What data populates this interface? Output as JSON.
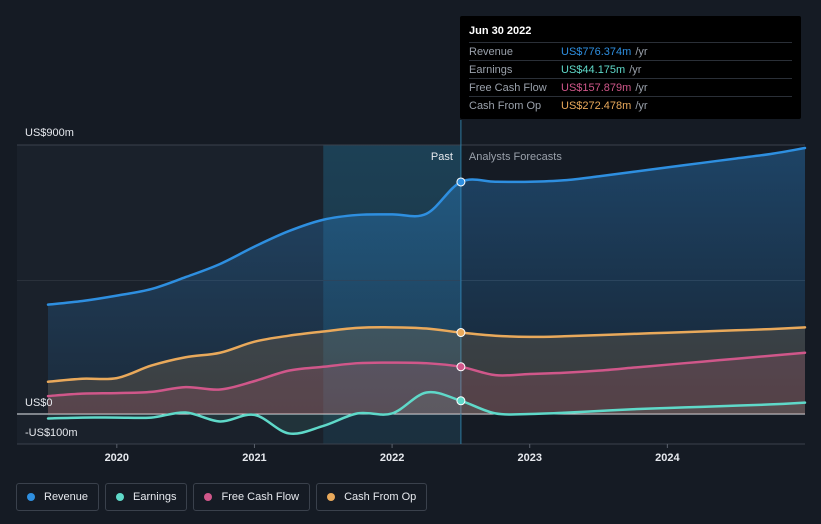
{
  "tooltip": {
    "date": "Jun 30 2022",
    "rows": [
      {
        "label": "Revenue",
        "value": "US$776.374m",
        "unit": "/yr",
        "color": "#2e8fe0"
      },
      {
        "label": "Earnings",
        "value": "US$44.175m",
        "unit": "/yr",
        "color": "#5fd9c9"
      },
      {
        "label": "Free Cash Flow",
        "value": "US$157.879m",
        "unit": "/yr",
        "color": "#d0578a"
      },
      {
        "label": "Cash From Op",
        "value": "US$272.478m",
        "unit": "/yr",
        "color": "#e9a95b"
      }
    ]
  },
  "legend": [
    {
      "label": "Revenue",
      "color": "#2e8fe0"
    },
    {
      "label": "Earnings",
      "color": "#5fd9c9"
    },
    {
      "label": "Free Cash Flow",
      "color": "#d0578a"
    },
    {
      "label": "Cash From Op",
      "color": "#e9a95b"
    }
  ],
  "chart_data": {
    "type": "area",
    "y_axis_labels": {
      "top": "US$900m",
      "zero": "US$0",
      "bottom": "-US$100m"
    },
    "ylim": [
      -100,
      900
    ],
    "xlim": [
      2019.5,
      2025.0
    ],
    "x_ticks": [
      2020,
      2021,
      2022,
      2023,
      2024
    ],
    "x_tick_labels": [
      "2020",
      "2021",
      "2022",
      "2023",
      "2024"
    ],
    "past_label": "Past",
    "forecast_label": "Analysts Forecasts",
    "past_end": 2022.5,
    "highlight_start": 2021.5,
    "series": [
      {
        "name": "Revenue",
        "color": "#2e8fe0",
        "points": [
          [
            2019.5,
            366
          ],
          [
            2019.75,
            378
          ],
          [
            2020.0,
            396
          ],
          [
            2020.25,
            418
          ],
          [
            2020.5,
            458
          ],
          [
            2020.75,
            502
          ],
          [
            2021.0,
            560
          ],
          [
            2021.25,
            612
          ],
          [
            2021.5,
            650
          ],
          [
            2021.75,
            666
          ],
          [
            2022.0,
            668
          ],
          [
            2022.25,
            670
          ],
          [
            2022.5,
            776.374
          ],
          [
            2022.75,
            777
          ],
          [
            2023.0,
            777
          ],
          [
            2023.25,
            782
          ],
          [
            2023.5,
            795
          ],
          [
            2023.75,
            810
          ],
          [
            2024.0,
            825
          ],
          [
            2024.25,
            840
          ],
          [
            2024.5,
            855
          ],
          [
            2024.75,
            870
          ],
          [
            2025.0,
            890
          ]
        ]
      },
      {
        "name": "Earnings",
        "color": "#5fd9c9",
        "points": [
          [
            2019.5,
            -15
          ],
          [
            2019.75,
            -12
          ],
          [
            2020.0,
            -12
          ],
          [
            2020.25,
            -12
          ],
          [
            2020.5,
            5
          ],
          [
            2020.75,
            -25
          ],
          [
            2021.0,
            -3
          ],
          [
            2021.25,
            -65
          ],
          [
            2021.5,
            -40
          ],
          [
            2021.75,
            2
          ],
          [
            2022.0,
            2
          ],
          [
            2022.25,
            72
          ],
          [
            2022.5,
            44.175
          ],
          [
            2022.75,
            2
          ],
          [
            2023.0,
            0
          ],
          [
            2023.25,
            4
          ],
          [
            2023.5,
            10
          ],
          [
            2023.75,
            16
          ],
          [
            2024.0,
            20
          ],
          [
            2024.25,
            24
          ],
          [
            2024.5,
            28
          ],
          [
            2024.75,
            32
          ],
          [
            2025.0,
            38
          ]
        ]
      },
      {
        "name": "Free Cash Flow",
        "color": "#d0578a",
        "points": [
          [
            2019.5,
            60
          ],
          [
            2019.75,
            68
          ],
          [
            2020.0,
            70
          ],
          [
            2020.25,
            74
          ],
          [
            2020.5,
            90
          ],
          [
            2020.75,
            82
          ],
          [
            2021.0,
            110
          ],
          [
            2021.25,
            145
          ],
          [
            2021.5,
            158
          ],
          [
            2021.75,
            170
          ],
          [
            2022.0,
            172
          ],
          [
            2022.25,
            170
          ],
          [
            2022.5,
            157.879
          ],
          [
            2022.75,
            130
          ],
          [
            2023.0,
            134
          ],
          [
            2023.25,
            138
          ],
          [
            2023.5,
            145
          ],
          [
            2023.75,
            155
          ],
          [
            2024.0,
            165
          ],
          [
            2024.25,
            175
          ],
          [
            2024.5,
            185
          ],
          [
            2024.75,
            195
          ],
          [
            2025.0,
            205
          ]
        ]
      },
      {
        "name": "Cash From Op",
        "color": "#e9a95b",
        "points": [
          [
            2019.5,
            108
          ],
          [
            2019.75,
            118
          ],
          [
            2020.0,
            120
          ],
          [
            2020.25,
            162
          ],
          [
            2020.5,
            190
          ],
          [
            2020.75,
            205
          ],
          [
            2021.0,
            242
          ],
          [
            2021.25,
            262
          ],
          [
            2021.5,
            276
          ],
          [
            2021.75,
            288
          ],
          [
            2022.0,
            290
          ],
          [
            2022.25,
            286
          ],
          [
            2022.5,
            272.478
          ],
          [
            2022.75,
            262
          ],
          [
            2023.0,
            258
          ],
          [
            2023.25,
            260
          ],
          [
            2023.5,
            264
          ],
          [
            2023.75,
            268
          ],
          [
            2024.0,
            272
          ],
          [
            2024.25,
            276
          ],
          [
            2024.5,
            280
          ],
          [
            2024.75,
            284
          ],
          [
            2025.0,
            290
          ]
        ]
      }
    ]
  }
}
